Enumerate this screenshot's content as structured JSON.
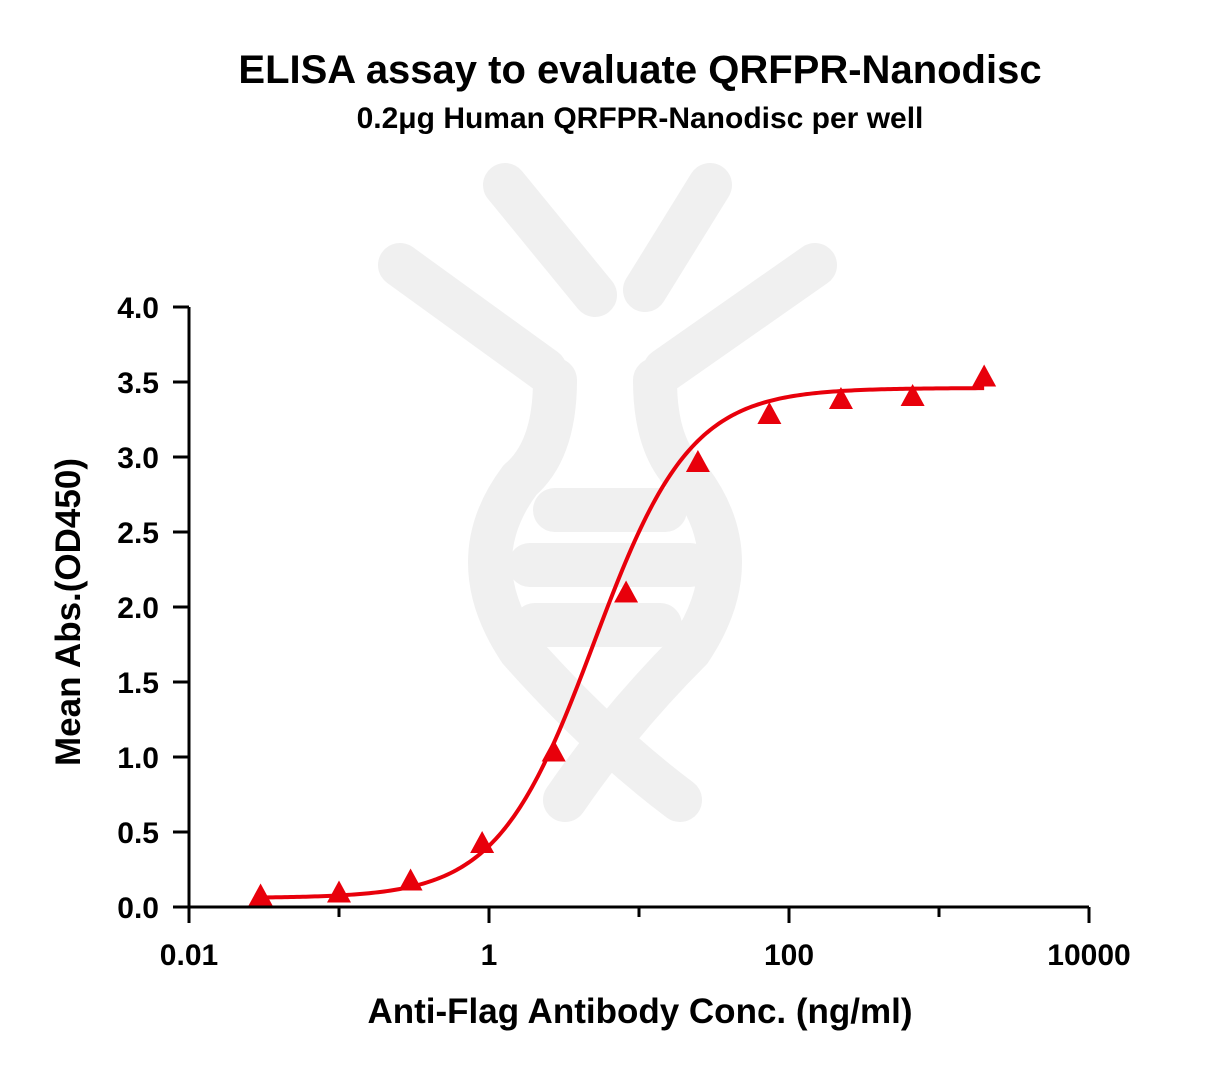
{
  "chart_data": {
    "type": "scatter",
    "title": "ELISA assay to evaluate QRFPR-Nanodisc",
    "subtitle": "0.2μg Human QRFPR-Nanodisc per well",
    "xlabel": "Anti-Flag Antibody Conc. (ng/ml)",
    "ylabel": "Mean Abs.(OD450)",
    "x_scale": "log",
    "xlim": [
      0.01,
      10000
    ],
    "ylim": [
      0,
      4.0
    ],
    "x_ticks": [
      0.01,
      1,
      100,
      10000
    ],
    "x_tick_labels": [
      "0.01",
      "1",
      "100",
      "10000"
    ],
    "y_ticks": [
      0,
      0.5,
      1.0,
      1.5,
      2.0,
      2.5,
      3.0,
      3.5,
      4.0
    ],
    "y_tick_labels": [
      "0.0",
      "0.5",
      "1.0",
      "1.5",
      "2.0",
      "2.5",
      "3.0",
      "3.5",
      "4.0"
    ],
    "series": [
      {
        "marker": "triangle",
        "color": "#e8000b",
        "x": [
          0.03,
          0.1,
          0.3,
          0.9,
          2.7,
          8.2,
          24.7,
          74,
          222,
          667,
          2000
        ],
        "y": [
          0.07,
          0.09,
          0.17,
          0.42,
          1.03,
          2.09,
          2.96,
          3.28,
          3.38,
          3.4,
          3.53
        ]
      }
    ],
    "fit_curve": {
      "model": "4PL",
      "color": "#e8000b",
      "bottom": 0.06,
      "top": 3.46,
      "ec50": 5.0,
      "hill": 1.35
    },
    "grid": false,
    "legend": "none"
  }
}
